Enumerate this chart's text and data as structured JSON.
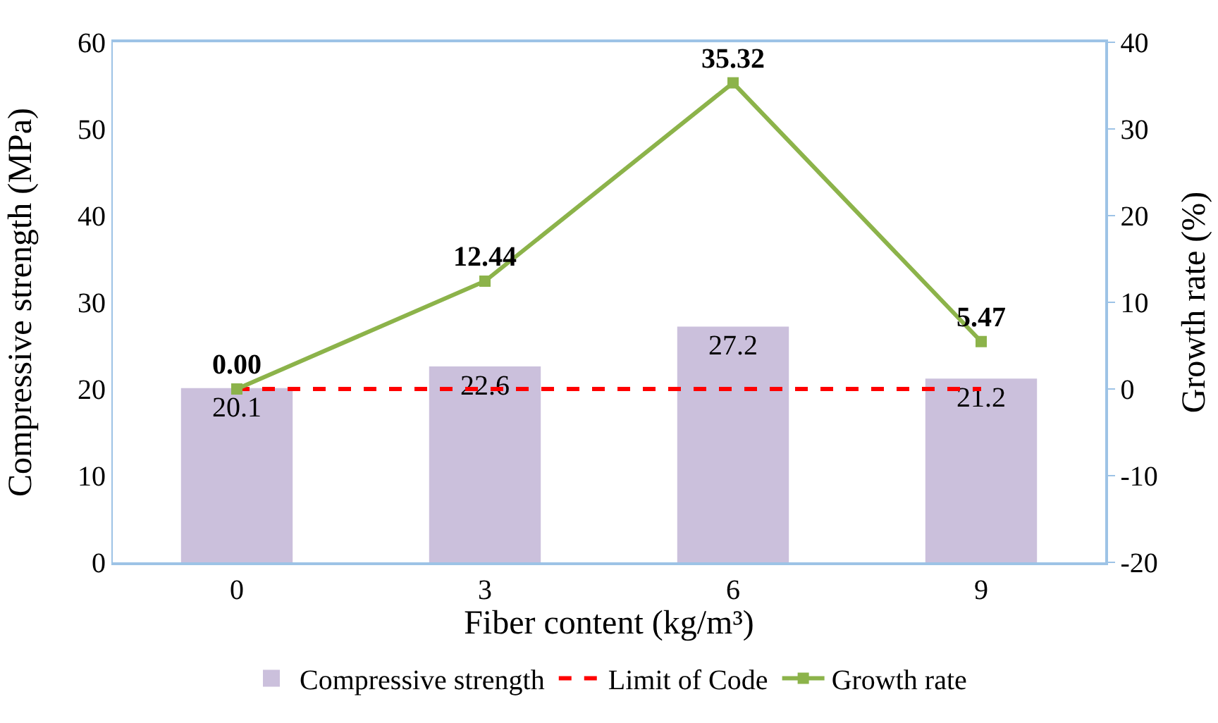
{
  "chart_data": {
    "type": "bar",
    "xlabel": "Fiber content (kg/m³)",
    "ylabel": "Compressive strength (MPa)",
    "y2label": "Growth rate (%)",
    "categories": [
      "0",
      "3",
      "6",
      "9"
    ],
    "series": [
      {
        "name": "Compressive strength",
        "color": "#cbc0dc",
        "values": [
          20.1,
          22.6,
          27.2,
          21.2
        ],
        "value_labels": [
          "20.1",
          "22.6",
          "27.2",
          "21.2"
        ]
      },
      {
        "name": "Limit of Code",
        "type": "line",
        "color": "#ff0000",
        "values": [
          20,
          20,
          20,
          20
        ],
        "line_style": "dashed",
        "marker": "none"
      },
      {
        "name": "Growth rate",
        "type": "line",
        "axis": "y2",
        "color": "#8cb34a",
        "values": [
          0,
          12.44,
          35.32,
          5.47
        ],
        "marker": "square",
        "value_labels": [
          "0.00",
          "12.44",
          "35.32",
          "5.47"
        ]
      }
    ],
    "ylim": [
      0,
      60
    ],
    "yticks": [
      0,
      10,
      20,
      30,
      40,
      50,
      60
    ],
    "y2lim": [
      -20,
      40
    ],
    "y2ticks": [
      -20,
      -10,
      0,
      10,
      20,
      30,
      40
    ],
    "grid": false,
    "legend": "bottom"
  }
}
